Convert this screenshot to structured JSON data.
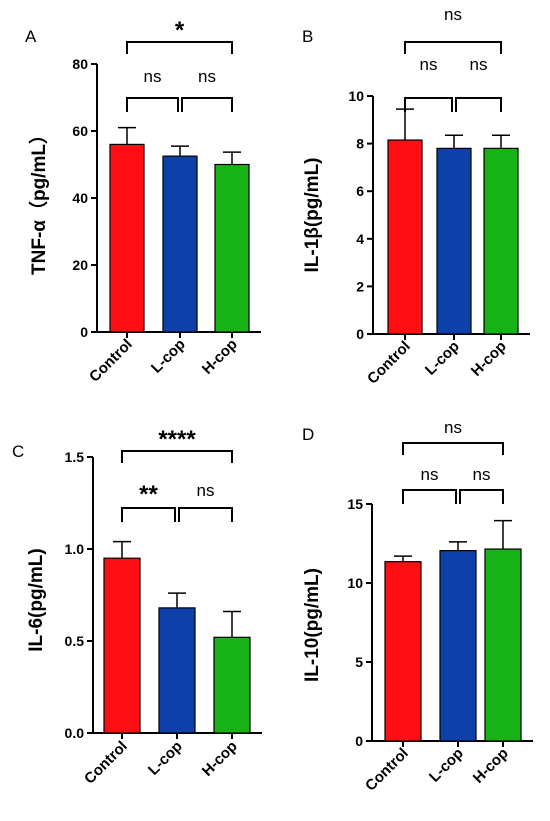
{
  "chart_data": [
    {
      "panel": "A",
      "type": "bar",
      "ylabel": "TNF-α（pg/mL）",
      "categories": [
        "Control",
        "L-cop",
        "H-cop"
      ],
      "values": [
        56,
        52.5,
        50
      ],
      "errors": [
        5,
        3,
        3.7
      ],
      "colors": [
        "#ff0f14",
        "#0d40a8",
        "#17b215"
      ],
      "ylim": [
        0,
        80
      ],
      "yticks": [
        "0",
        "20",
        "40",
        "60",
        "80"
      ],
      "comparisons": [
        {
          "groups": [
            "Control",
            "L-cop"
          ],
          "label": "ns"
        },
        {
          "groups": [
            "L-cop",
            "H-cop"
          ],
          "label": "ns"
        },
        {
          "groups": [
            "Control",
            "H-cop"
          ],
          "label": "*"
        }
      ]
    },
    {
      "panel": "B",
      "type": "bar",
      "ylabel": "IL-1β(pg/mL)",
      "categories": [
        "Control",
        "L-cop",
        "H-cop"
      ],
      "values": [
        8.15,
        7.8,
        7.8
      ],
      "errors": [
        1.3,
        0.55,
        0.55
      ],
      "colors": [
        "#ff0f14",
        "#0d40a8",
        "#17b215"
      ],
      "ylim": [
        0,
        10
      ],
      "yticks": [
        "0",
        "2",
        "4",
        "6",
        "8",
        "10"
      ],
      "comparisons": [
        {
          "groups": [
            "Control",
            "L-cop"
          ],
          "label": "ns"
        },
        {
          "groups": [
            "L-cop",
            "H-cop"
          ],
          "label": "ns"
        },
        {
          "groups": [
            "Control",
            "H-cop"
          ],
          "label": "ns"
        }
      ]
    },
    {
      "panel": "C",
      "type": "bar",
      "ylabel": "IL-6(pg/mL)",
      "categories": [
        "Control",
        "L-cop",
        "H-cop"
      ],
      "values": [
        0.95,
        0.68,
        0.52
      ],
      "errors": [
        0.09,
        0.08,
        0.14
      ],
      "colors": [
        "#ff0f14",
        "#0d40a8",
        "#17b215"
      ],
      "ylim": [
        0,
        1.5
      ],
      "yticks": [
        "0.0",
        "0.5",
        "1.0",
        "1.5"
      ],
      "comparisons": [
        {
          "groups": [
            "Control",
            "L-cop"
          ],
          "label": "**"
        },
        {
          "groups": [
            "L-cop",
            "H-cop"
          ],
          "label": "ns"
        },
        {
          "groups": [
            "Control",
            "H-cop"
          ],
          "label": "****"
        }
      ]
    },
    {
      "panel": "D",
      "type": "bar",
      "ylabel": "IL-10(pg/mL)",
      "categories": [
        "Control",
        "L-cop",
        "H-cop"
      ],
      "values": [
        11.35,
        12.05,
        12.15
      ],
      "errors": [
        0.35,
        0.55,
        1.8
      ],
      "colors": [
        "#ff0f14",
        "#0d40a8",
        "#17b215"
      ],
      "ylim": [
        0,
        15
      ],
      "yticks": [
        "0",
        "5",
        "10",
        "15"
      ],
      "comparisons": [
        {
          "groups": [
            "Control",
            "L-cop"
          ],
          "label": "ns"
        },
        {
          "groups": [
            "L-cop",
            "H-cop"
          ],
          "label": "ns"
        },
        {
          "groups": [
            "Control",
            "H-cop"
          ],
          "label": "ns"
        }
      ]
    }
  ]
}
